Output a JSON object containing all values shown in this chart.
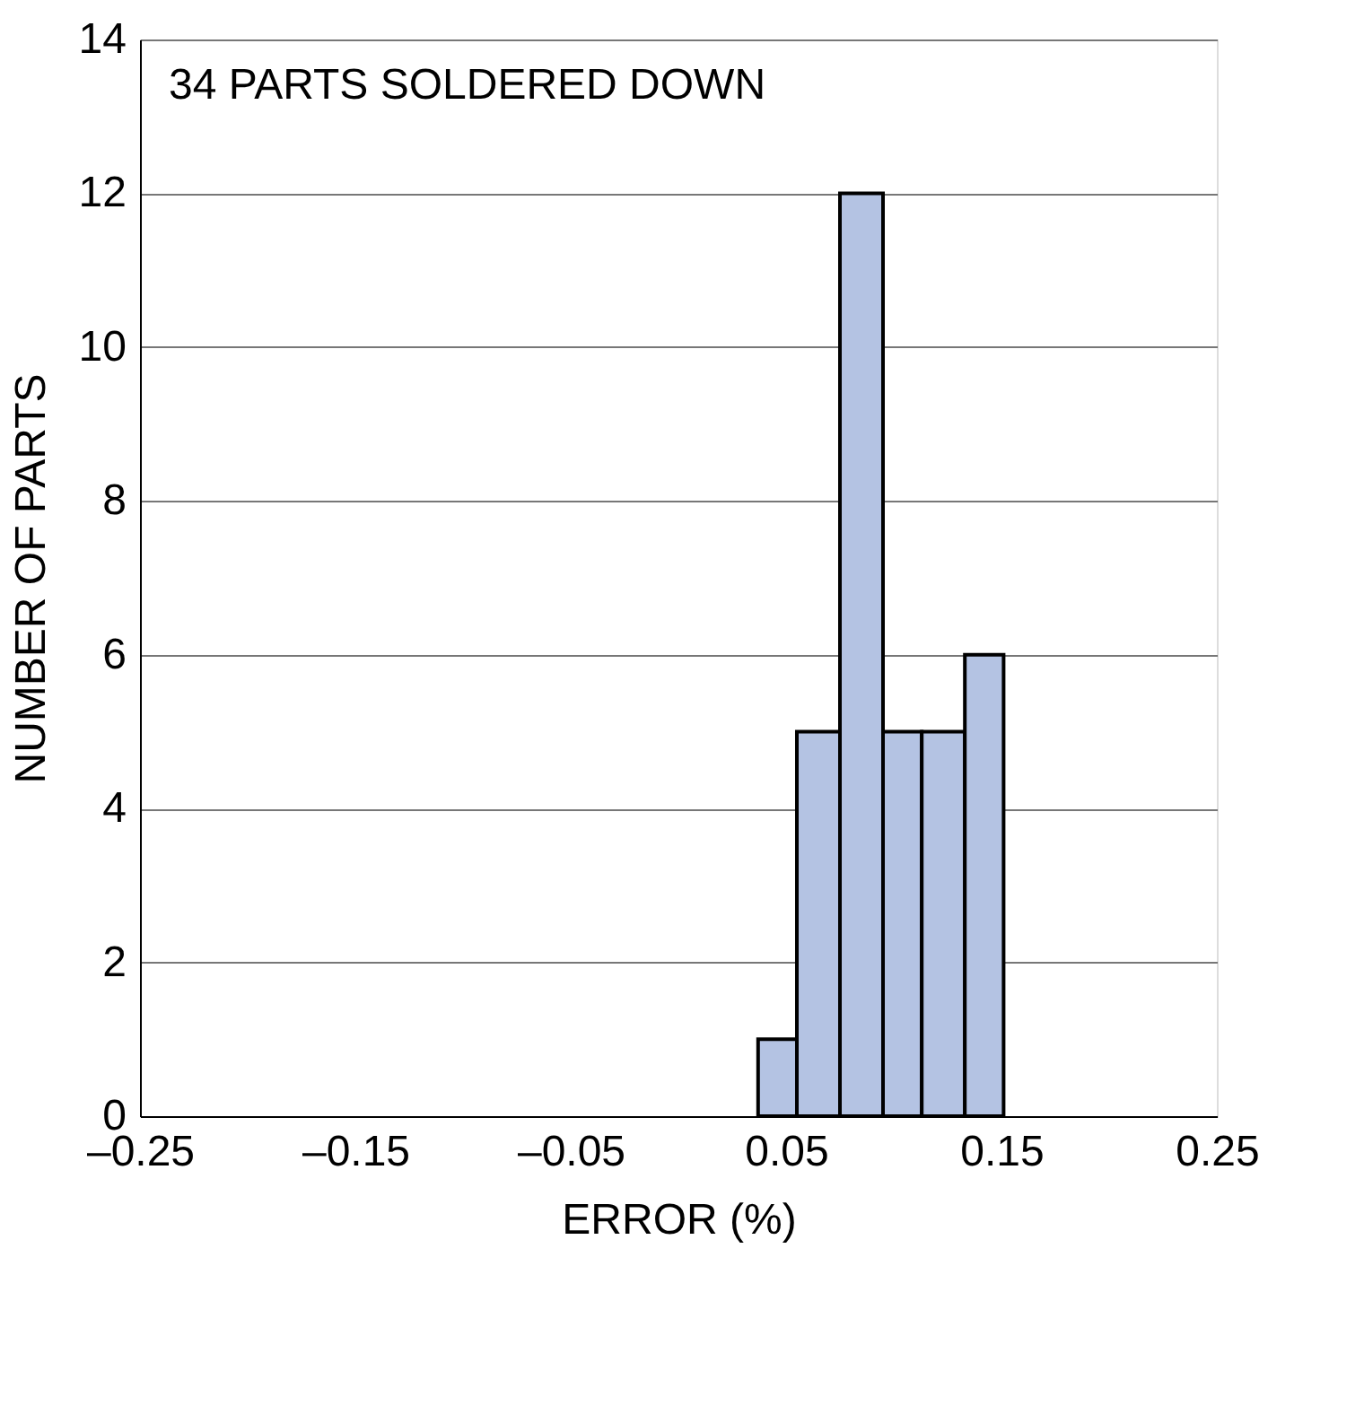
{
  "chart_data": {
    "type": "histogram",
    "xlabel": "ERROR (%)",
    "ylabel": "NUMBER OF PARTS",
    "annotations": [
      "34 PARTS SOLDERED DOWN"
    ],
    "bins": [
      0.037,
      0.055,
      0.075,
      0.095,
      0.113,
      0.133,
      0.151
    ],
    "values": [
      1,
      5,
      12,
      5,
      5,
      6
    ],
    "color": "#b4c3e3",
    "xlim": [
      -0.25,
      0.25
    ],
    "xticks": [
      {
        "value": -0.25,
        "label": "–0.25"
      },
      {
        "value": -0.15,
        "label": "–0.15"
      },
      {
        "value": -0.05,
        "label": "–0.05"
      },
      0.05,
      0.15,
      0.25
    ],
    "ylim": [
      0,
      14
    ],
    "yticks": [
      0,
      2,
      4,
      6,
      8,
      10,
      12,
      14
    ],
    "grid": "y"
  }
}
